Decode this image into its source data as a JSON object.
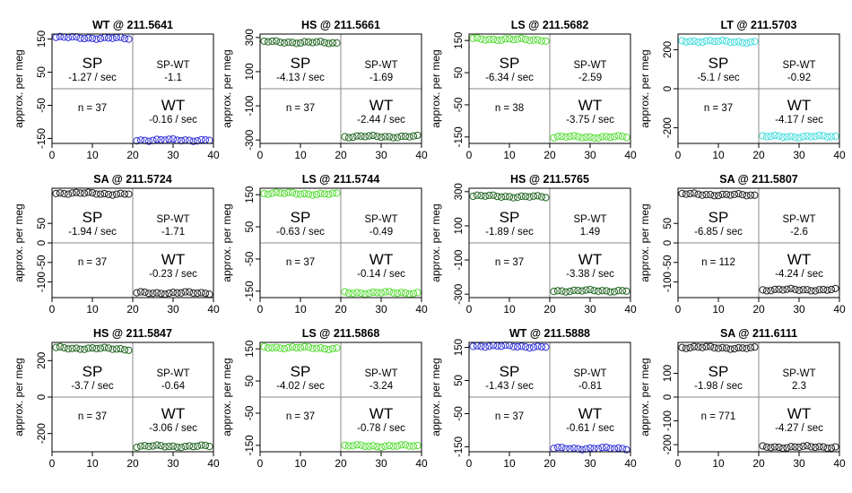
{
  "ylabel": "approx. per meg",
  "colors": {
    "blue": "#3333dd",
    "darkgreen": "#226622",
    "lightgreen": "#55dd33",
    "cyan": "#44dddd",
    "black": "#222222"
  },
  "chart_data": [
    {
      "type": "scatter",
      "title": "WT @ 211.5641",
      "color": "blue",
      "xlim": [
        0,
        40
      ],
      "ylim": [
        -165,
        165
      ],
      "xticks": [
        "0",
        "10",
        "20",
        "30",
        "40"
      ],
      "yticks": [
        "-150",
        "-50",
        "50",
        "150"
      ],
      "sp_label": "SP",
      "sp_rate": "-1.27 / sec",
      "diff_label": "SP-WT",
      "diff_value": "-1.1",
      "n_label": "n = 37",
      "wt_label": "WT",
      "wt_rate": "-0.16 / sec",
      "sp_level": 155,
      "wt_level": -155
    },
    {
      "type": "scatter",
      "title": "HS @ 211.5661",
      "color": "darkgreen",
      "xlim": [
        0,
        40
      ],
      "ylim": [
        -320,
        320
      ],
      "xticks": [
        "0",
        "10",
        "20",
        "30",
        "40"
      ],
      "yticks": [
        "-300",
        "-100",
        "100",
        "300"
      ],
      "sp_label": "SP",
      "sp_rate": "-4.13 / sec",
      "diff_label": "SP-WT",
      "diff_value": "-1.69",
      "n_label": "n = 37",
      "wt_label": "WT",
      "wt_rate": "-2.44 / sec",
      "sp_level": 275,
      "wt_level": -280
    },
    {
      "type": "scatter",
      "title": "LS @ 211.5682",
      "color": "lightgreen",
      "xlim": [
        0,
        40
      ],
      "ylim": [
        -170,
        170
      ],
      "xticks": [
        "0",
        "10",
        "20",
        "30",
        "40"
      ],
      "yticks": [
        "-150",
        "-50",
        "50",
        "150"
      ],
      "sp_label": "SP",
      "sp_rate": "-6.34 / sec",
      "diff_label": "SP-WT",
      "diff_value": "-2.59",
      "n_label": "n = 38",
      "wt_label": "WT",
      "wt_rate": "-3.75 / sec",
      "sp_level": 155,
      "wt_level": -150
    },
    {
      "type": "scatter",
      "title": "LT @ 211.5703",
      "color": "cyan",
      "xlim": [
        0,
        40
      ],
      "ylim": [
        -280,
        280
      ],
      "xticks": [
        "0",
        "10",
        "20",
        "30",
        "40"
      ],
      "yticks": [
        "-200",
        "0",
        "200"
      ],
      "sp_label": "SP",
      "sp_rate": "-5.1 / sec",
      "diff_label": "SP-WT",
      "diff_value": "-0.92",
      "n_label": "n = 37",
      "wt_label": "WT",
      "wt_rate": "-4.17 / sec",
      "sp_level": 245,
      "wt_level": -245
    },
    {
      "type": "scatter",
      "title": "SA @ 211.5724",
      "color": "black",
      "xlim": [
        0,
        40
      ],
      "ylim": [
        -140,
        140
      ],
      "xticks": [
        "0",
        "10",
        "20",
        "30",
        "40"
      ],
      "yticks": [
        "-100",
        "-50",
        "0",
        "50"
      ],
      "sp_label": "SP",
      "sp_rate": "-1.94 / sec",
      "diff_label": "SP-WT",
      "diff_value": "-1.71",
      "n_label": "n = 37",
      "wt_label": "WT",
      "wt_rate": "-0.23 / sec",
      "sp_level": 128,
      "wt_level": -128
    },
    {
      "type": "scatter",
      "title": "LS @ 211.5744",
      "color": "lightgreen",
      "xlim": [
        0,
        40
      ],
      "ylim": [
        -170,
        170
      ],
      "xticks": [
        "0",
        "10",
        "20",
        "30",
        "40"
      ],
      "yticks": [
        "-150",
        "-50",
        "50",
        "150"
      ],
      "sp_label": "SP",
      "sp_rate": "-0.63 / sec",
      "diff_label": "SP-WT",
      "diff_value": "-0.49",
      "n_label": "n = 37",
      "wt_label": "WT",
      "wt_rate": "-0.14 / sec",
      "sp_level": 155,
      "wt_level": -155
    },
    {
      "type": "scatter",
      "title": "HS @ 211.5765",
      "color": "darkgreen",
      "xlim": [
        0,
        40
      ],
      "ylim": [
        -320,
        320
      ],
      "xticks": [
        "0",
        "10",
        "20",
        "30",
        "40"
      ],
      "yticks": [
        "-300",
        "-100",
        "100",
        "300"
      ],
      "sp_label": "SP",
      "sp_rate": "-1.89 / sec",
      "diff_label": "SP-WT",
      "diff_value": "1.49",
      "n_label": "n = 37",
      "wt_label": "WT",
      "wt_rate": "-3.38 / sec",
      "sp_level": 275,
      "wt_level": -280
    },
    {
      "type": "scatter",
      "title": "SA @ 211.5807",
      "color": "black",
      "xlim": [
        0,
        40
      ],
      "ylim": [
        -140,
        140
      ],
      "xticks": [
        "0",
        "10",
        "20",
        "30",
        "40"
      ],
      "yticks": [
        "-100",
        "-50",
        "0",
        "50"
      ],
      "sp_label": "SP",
      "sp_rate": "-6.85 / sec",
      "diff_label": "SP-WT",
      "diff_value": "-2.6",
      "n_label": "n = 112",
      "wt_label": "WT",
      "wt_rate": "-4.24 / sec",
      "sp_level": 125,
      "wt_level": -120
    },
    {
      "type": "scatter",
      "title": "HS @ 211.5847",
      "color": "darkgreen",
      "xlim": [
        0,
        40
      ],
      "ylim": [
        -300,
        300
      ],
      "xticks": [
        "0",
        "10",
        "20",
        "30",
        "40"
      ],
      "yticks": [
        "-200",
        "0",
        "200"
      ],
      "sp_label": "SP",
      "sp_rate": "-3.7 / sec",
      "diff_label": "SP-WT",
      "diff_value": "-0.64",
      "n_label": "n = 37",
      "wt_label": "WT",
      "wt_rate": "-3.06 / sec",
      "sp_level": 270,
      "wt_level": -270
    },
    {
      "type": "scatter",
      "title": "LS @ 211.5868",
      "color": "lightgreen",
      "xlim": [
        0,
        40
      ],
      "ylim": [
        -170,
        170
      ],
      "xticks": [
        "0",
        "10",
        "20",
        "30",
        "40"
      ],
      "yticks": [
        "-150",
        "-50",
        "50",
        "150"
      ],
      "sp_label": "SP",
      "sp_rate": "-4.02 / sec",
      "diff_label": "SP-WT",
      "diff_value": "-3.24",
      "n_label": "n = 37",
      "wt_label": "WT",
      "wt_rate": "-0.78 / sec",
      "sp_level": 155,
      "wt_level": -152
    },
    {
      "type": "scatter",
      "title": "WT @ 211.5888",
      "color": "blue",
      "xlim": [
        0,
        40
      ],
      "ylim": [
        -165,
        165
      ],
      "xticks": [
        "0",
        "10",
        "20",
        "30",
        "40"
      ],
      "yticks": [
        "-150",
        "-50",
        "50",
        "150"
      ],
      "sp_label": "SP",
      "sp_rate": "-1.43 / sec",
      "diff_label": "SP-WT",
      "diff_value": "-0.81",
      "n_label": "n = 37",
      "wt_label": "WT",
      "wt_rate": "-0.61 / sec",
      "sp_level": 155,
      "wt_level": -155
    },
    {
      "type": "scatter",
      "title": "SA @ 211.6111",
      "color": "black",
      "xlim": [
        0,
        40
      ],
      "ylim": [
        -230,
        230
      ],
      "xticks": [
        "0",
        "10",
        "20",
        "30",
        "40"
      ],
      "yticks": [
        "-200",
        "-100",
        "0",
        "100"
      ],
      "sp_label": "SP",
      "sp_rate": "-1.98 / sec",
      "diff_label": "SP-WT",
      "diff_value": "2.3",
      "n_label": "n = 771",
      "wt_label": "WT",
      "wt_rate": "-4.27 / sec",
      "sp_level": 210,
      "wt_level": -210
    }
  ]
}
